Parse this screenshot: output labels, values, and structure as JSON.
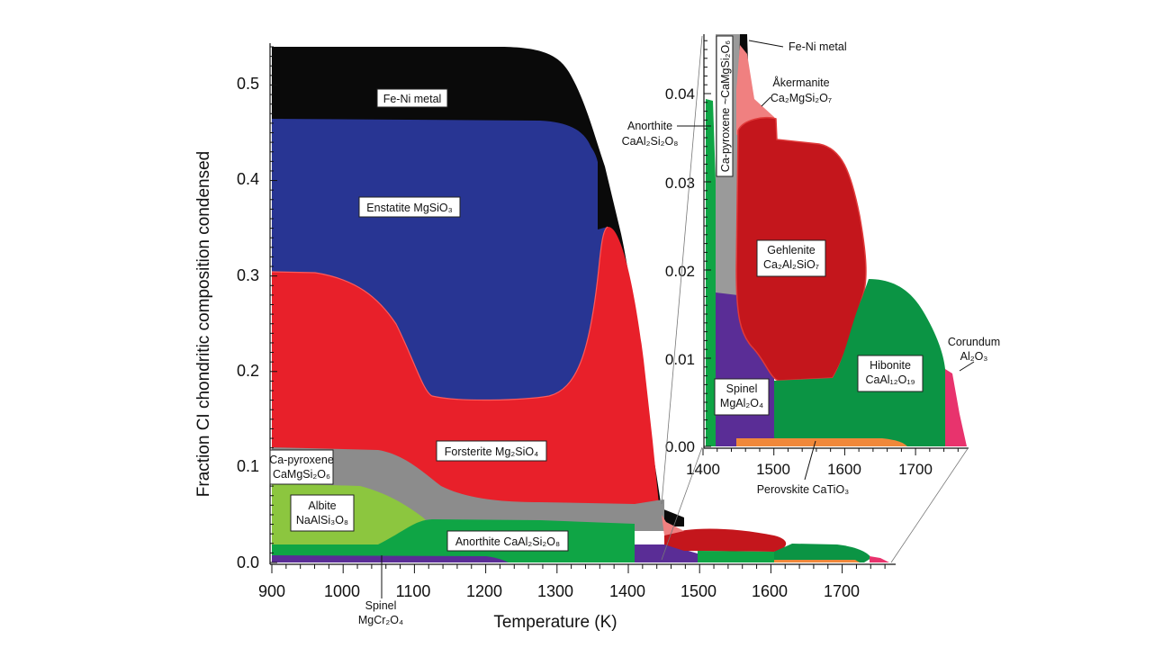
{
  "chart_data": [
    {
      "type": "area",
      "subtype": "stacked",
      "xlabel": "Temperature (K)",
      "ylabel": "Fraction CI chondritic composition condensed",
      "xlim": [
        900,
        1790
      ],
      "ylim": [
        0,
        0.545
      ],
      "xticks": [
        "900",
        "1000",
        "1100",
        "1200",
        "1300",
        "1400",
        "1500",
        "1600",
        "1700"
      ],
      "yticks": [
        "0.0",
        "0.1",
        "0.2",
        "0.3",
        "0.4",
        "0.5"
      ],
      "grid": false,
      "colors": {
        "spinel_cr": "#5a2d96",
        "anorthite": "#0fa545",
        "albite": "#8cc63f",
        "ca_pyroxene": "#8c8c8c",
        "forsterite": "#e8202a",
        "enstatite": "#283593",
        "fe_ni": "#0a0a0a",
        "gehlenite": "#c4161c",
        "akermanite": "#f08080",
        "hibonite": "#0b9444",
        "perovskite": "#f0883a",
        "corundum": "#e8336d",
        "spinel": "#5a2d96"
      },
      "series": [
        {
          "name": "Spinel MgCr2O4",
          "x": [
            900,
            1200,
            1410
          ],
          "values": [
            0.005,
            0.005,
            0.002
          ]
        },
        {
          "name": "Anorthite CaAl2Si2O8",
          "x": [
            900,
            1100,
            1150,
            1300,
            1410
          ],
          "values": [
            0.013,
            0.015,
            0.04,
            0.04,
            0.038
          ]
        },
        {
          "name": "Albite NaAlSi3O8",
          "x": [
            900,
            1050,
            1130
          ],
          "values": [
            0.062,
            0.055,
            0.0
          ]
        },
        {
          "name": "Ca-pyroxene CaMgSi2O6",
          "x": [
            900,
            1100,
            1300,
            1410
          ],
          "values": [
            0.02,
            0.02,
            0.02,
            0.018
          ]
        },
        {
          "name": "Forsterite Mg2SiO4",
          "x": [
            900,
            1000,
            1100,
            1200,
            1300,
            1370,
            1420,
            1440
          ],
          "values": [
            0.222,
            0.215,
            0.135,
            0.104,
            0.135,
            0.26,
            0.2,
            0.0
          ]
        },
        {
          "name": "Enstatite MgSiO3",
          "x": [
            900,
            1000,
            1100,
            1200,
            1300,
            1365
          ],
          "values": [
            0.16,
            0.165,
            0.25,
            0.298,
            0.28,
            0.0
          ]
        },
        {
          "name": "Fe-Ni metal",
          "x": [
            900,
            1300,
            1350,
            1400,
            1430,
            1450
          ],
          "values": [
            0.078,
            0.078,
            0.07,
            0.15,
            0.1,
            0.0
          ]
        }
      ]
    },
    {
      "type": "area",
      "subtype": "stacked",
      "inset": true,
      "xlim": [
        1400,
        1775
      ],
      "ylim": [
        0,
        0.047
      ],
      "xticks": [
        "1400",
        "1500",
        "1600",
        "1700"
      ],
      "yticks": [
        "0.00",
        "0.01",
        "0.02",
        "0.03",
        "0.04"
      ],
      "series": [
        {
          "name": "Spinel MgAl2O4",
          "x": [
            1418,
            1500
          ],
          "values": [
            0.017,
            0.008
          ]
        },
        {
          "name": "Hibonite CaAl12O19",
          "x": [
            1500,
            1620,
            1700,
            1740
          ],
          "values": [
            0.008,
            0.019,
            0.015,
            0.0
          ]
        },
        {
          "name": "Gehlenite Ca2Al2SiO7",
          "x": [
            1450,
            1500,
            1600,
            1630
          ],
          "values": [
            0.032,
            0.036,
            0.033,
            0.019
          ]
        },
        {
          "name": "Perovskite CaTiO3",
          "x": [
            1450,
            1650,
            1690
          ],
          "values": [
            0.001,
            0.001,
            0.0
          ]
        },
        {
          "name": "Corundum Al2O3",
          "x": [
            1740,
            1775
          ],
          "values": [
            0.013,
            0.0
          ]
        },
        {
          "name": "Åkermanite Ca2MgSi2O7",
          "x": [
            1430,
            1450
          ],
          "values": [
            0.038,
            0.037
          ]
        },
        {
          "name": "Ca-pyroxene ~CaMgSi2O6",
          "x": [
            1405,
            1430
          ],
          "values": [
            0.046,
            0.038
          ]
        },
        {
          "name": "Anorthite CaAl2Si2O8",
          "x": [
            1400,
            1405
          ],
          "values": [
            0.04,
            0.04
          ]
        },
        {
          "name": "Fe-Ni metal",
          "x": [
            1430,
            1450
          ],
          "values": [
            0.046,
            0.04
          ]
        }
      ]
    }
  ],
  "labels": {
    "feni": "Fe-Ni metal",
    "enstatite": "Enstatite MgSiO₃",
    "forsterite": "Forsterite Mg₂SiO₄",
    "capx_l1": "Ca-pyroxene",
    "capx_l2": "CaMgSi₂O₆",
    "albite_l1": "Albite",
    "albite_l2": "NaAlSi₃O₈",
    "anorthite": "Anorthite CaAl₂Si₂O₈",
    "spinel_cr_l1": "Spinel",
    "spinel_cr_l2": "MgCr₂O₄",
    "inset_feni": "Fe-Ni metal",
    "akermanite_l1": "Åkermanite",
    "akermanite_l2": "Ca₂MgSi₂O₇",
    "inset_anorthite_l1": "Anorthite",
    "inset_anorthite_l2": "CaAl₂Si₂O₈",
    "inset_capx": "Ca-pyroxene ~CaMgSi₂O₆",
    "gehlenite_l1": "Gehlenite",
    "gehlenite_l2": "Ca₂Al₂SiO₇",
    "hibonite_l1": "Hibonite",
    "hibonite_l2": "CaAl₁₂O₁₉",
    "corundum_l1": "Corundum",
    "corundum_l2": "Al₂O₃",
    "spinel_l1": "Spinel",
    "spinel_l2": "MgAl₂O₄",
    "perovskite": "Perovskite CaTiO₃"
  }
}
